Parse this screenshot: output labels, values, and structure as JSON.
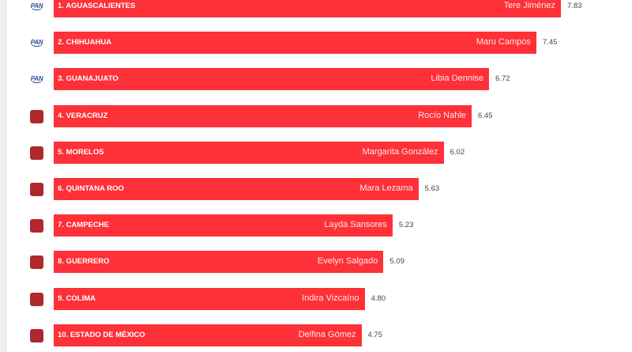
{
  "chart_data": {
    "type": "bar",
    "orientation": "horizontal",
    "categories": [
      "1. AGUASCALIENTES",
      "2. CHIHUAHUA",
      "3. GUANAJUATO",
      "4. VERACRUZ",
      "5. MORELOS",
      "6. QUINTANA ROO",
      "7. CAMPECHE",
      "8. GUERRERO",
      "9. COLIMA",
      "10. ESTADO DE MÉXICO"
    ],
    "names": [
      "Tere Jiménez",
      "Maru Campos",
      "Libia Dennise",
      "Rocío Nahle",
      "Margarita González",
      "Mara Lezama",
      "Layda Sansores",
      "Evelyn Salgado",
      "Indira Vizcaíno",
      "Delfina Gómez"
    ],
    "values": [
      7.83,
      7.45,
      6.72,
      6.45,
      6.02,
      5.63,
      5.23,
      5.09,
      4.8,
      4.75
    ],
    "value_labels": [
      "7.83",
      "7.45",
      "6.72",
      "6.45",
      "6.02",
      "5.63",
      "5.23",
      "5.09",
      "4.80",
      "4.75"
    ],
    "parties": [
      "PAN",
      "PAN",
      "PAN",
      "MORENA",
      "MORENA",
      "MORENA",
      "MORENA",
      "MORENA",
      "MORENA",
      "MORENA"
    ],
    "pan_logo_text": "PAN",
    "bar_color": "#fe3038",
    "grid": false
  }
}
